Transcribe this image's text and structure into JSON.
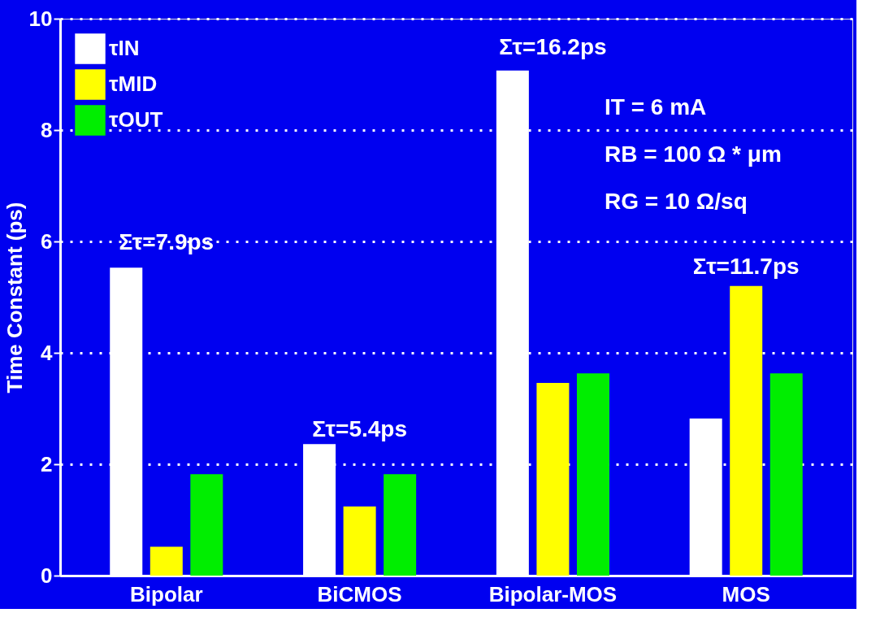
{
  "chart_data": {
    "type": "bar",
    "ylabel": "Time Constant (ps)",
    "categories": [
      "Bipolar",
      "BiCMOS",
      "Bipolar-MOS",
      "MOS"
    ],
    "series": [
      {
        "name": "τIN",
        "color": "#ffffff",
        "values": [
          5.53,
          2.36,
          9.07,
          2.82
        ]
      },
      {
        "name": "τMID",
        "color": "#ffff00",
        "values": [
          0.52,
          1.24,
          3.46,
          5.2
        ]
      },
      {
        "name": "τOUT",
        "color": "#00ee00",
        "values": [
          1.82,
          1.82,
          3.63,
          3.63
        ]
      }
    ],
    "ylim": [
      0,
      10
    ],
    "yticks": [
      0,
      2,
      4,
      6,
      8,
      10
    ],
    "grid": "y",
    "legend": "top left",
    "annotations": [
      "Στ=7.9ps",
      "Στ=5.4ps",
      "Στ=16.2ps",
      "Στ=11.7ps",
      "IT = 6 mA",
      "RB = 100 Ω * μm",
      "RG = 10 Ω/sq"
    ]
  }
}
